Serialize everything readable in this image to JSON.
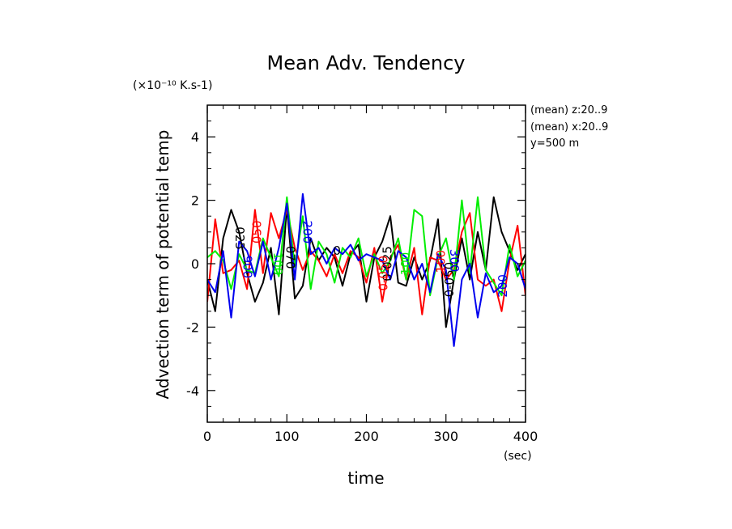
{
  "chart_data": {
    "type": "line",
    "title": "Mean Adv. Tendency",
    "ylabel": "Advection term of potential temp",
    "yscale_label": "(×10⁻¹⁰ K.s-1)",
    "xlabel": "time",
    "xunit": "(sec)",
    "xlim": [
      0,
      400
    ],
    "ylim": [
      -5,
      5
    ],
    "xticks": [
      "0",
      "100",
      "200",
      "300",
      "400"
    ],
    "yticks": [
      "-4",
      "-2",
      "0",
      "2",
      "4"
    ],
    "annotations": [
      "(mean) z:20..9",
      "(mean) x:20..9",
      "y=500 m"
    ],
    "x": [
      0,
      10,
      20,
      30,
      40,
      50,
      60,
      70,
      80,
      90,
      100,
      110,
      120,
      130,
      140,
      150,
      160,
      170,
      180,
      190,
      200,
      210,
      220,
      230,
      240,
      250,
      260,
      270,
      280,
      290,
      300,
      310,
      320,
      330,
      340,
      350,
      360,
      370,
      380,
      390,
      400
    ],
    "series": [
      {
        "name": "",
        "color": "#000000",
        "values": [
          -0.5,
          -1.5,
          0.8,
          1.7,
          1.0,
          -0.3,
          -1.2,
          -0.6,
          0.5,
          -1.6,
          1.8,
          -1.1,
          -0.7,
          0.8,
          0.1,
          0.5,
          0.2,
          -0.7,
          0.3,
          0.6,
          -1.2,
          0.2,
          0.7,
          1.5,
          -0.6,
          -0.7,
          0.2,
          -0.5,
          0.1,
          1.4,
          -2.0,
          -0.5,
          0.8,
          -0.5,
          1.0,
          -0.2,
          2.1,
          1.0,
          0.4,
          -0.2,
          0.3
        ]
      },
      {
        "name": "",
        "color": "#ff0000",
        "values": [
          -1.2,
          1.4,
          -0.3,
          -0.2,
          0.1,
          -0.8,
          1.7,
          -0.3,
          1.6,
          0.8,
          1.7,
          0.5,
          -0.2,
          0.4,
          0.1,
          -0.4,
          0.3,
          -0.3,
          0.4,
          0.2,
          -0.6,
          0.5,
          -1.2,
          0.2,
          0.6,
          -0.5,
          0.5,
          -1.6,
          0.2,
          0.1,
          -0.5,
          -0.2,
          1.0,
          1.6,
          -0.5,
          -0.7,
          -0.5,
          -1.5,
          0.1,
          1.2,
          -1.0
        ]
      },
      {
        "name": "",
        "color": "#00ee00",
        "values": [
          0.2,
          0.4,
          0.1,
          -0.8,
          0.3,
          -0.2,
          -0.3,
          0.8,
          0.2,
          -0.4,
          2.1,
          -0.1,
          1.5,
          -0.8,
          0.7,
          0.3,
          -0.6,
          0.5,
          0.2,
          0.8,
          -0.4,
          0.3,
          -0.3,
          0.1,
          0.8,
          -0.5,
          1.7,
          1.5,
          -1.0,
          0.2,
          0.8,
          -0.5,
          2.0,
          -0.3,
          2.1,
          -0.2,
          -0.6,
          -1.0,
          0.6,
          -0.4,
          0.1
        ]
      },
      {
        "name": "",
        "color": "#0000ee",
        "values": [
          -0.5,
          -0.9,
          0.4,
          -1.7,
          0.7,
          0.4,
          -0.4,
          0.7,
          -0.5,
          0.5,
          1.9,
          -0.5,
          2.2,
          0.3,
          0.5,
          0.0,
          0.5,
          0.3,
          0.6,
          0.1,
          0.3,
          0.2,
          0.1,
          -0.5,
          0.4,
          0.2,
          -0.5,
          0.0,
          -0.9,
          0.3,
          -0.2,
          -2.6,
          -0.5,
          0.0,
          -1.7,
          -0.3,
          -0.9,
          -0.7,
          0.2,
          0.0,
          -0.8
        ]
      }
    ],
    "contour_labels": [
      {
        "text": "025",
        "x": 40,
        "y": 0.8,
        "color": "#000000",
        "angle": 90
      },
      {
        "text": "050",
        "x": 63,
        "y": 1.0,
        "color": "#ff0000",
        "angle": -90
      },
      {
        "text": "900",
        "x": 50,
        "y": -0.1,
        "color": "#0000ee",
        "angle": 90
      },
      {
        "text": "100",
        "x": 88,
        "y": 0.0,
        "color": "#00ee00",
        "angle": 90
      },
      {
        "text": "070",
        "x": 104,
        "y": 0.2,
        "color": "#000000",
        "angle": 90
      },
      {
        "text": "200",
        "x": 125,
        "y": 1.0,
        "color": "#0000ee",
        "angle": 90
      },
      {
        "text": "0",
        "x": 163,
        "y": 0.4,
        "color": "#000000",
        "angle": 0
      },
      {
        "text": "0-025",
        "x": 227,
        "y": 0.0,
        "color": "#000000",
        "angle": -90
      },
      {
        "text": "0-050",
        "x": 222,
        "y": -0.3,
        "color": "#ff0000",
        "angle": -90
      },
      {
        "text": "100",
        "x": 250,
        "y": 0.0,
        "color": "#00ee00",
        "angle": -90
      },
      {
        "text": "0-050",
        "x": 305,
        "y": -0.5,
        "color": "#000000",
        "angle": -90
      },
      {
        "text": "300",
        "x": 310,
        "y": 0.1,
        "color": "#0000ee",
        "angle": 90
      },
      {
        "text": "-100",
        "x": 294,
        "y": 0.0,
        "color": "#ff0000",
        "angle": -90
      },
      {
        "text": "200",
        "x": 372,
        "y": -0.7,
        "color": "#0000ee",
        "angle": -90
      }
    ]
  }
}
